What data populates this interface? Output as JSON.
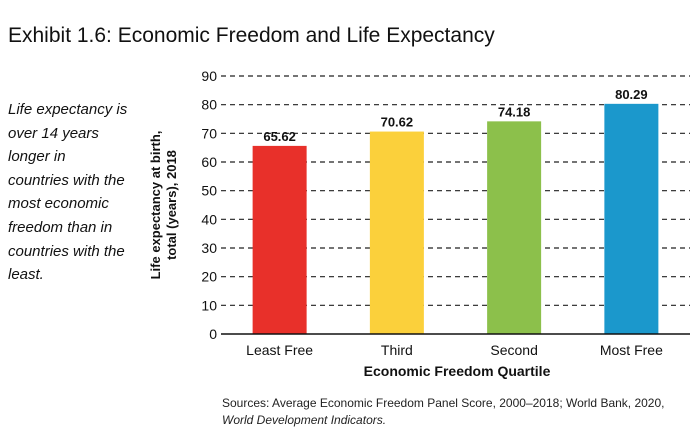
{
  "exhibit_title": "Exhibit 1.6: Economic Freedom and Life Expectancy",
  "note": "Life expectancy is over 14 years longer in countries with the most economic freedom than in countries with the least.",
  "sources": {
    "text": "Sources: Average Economic Freedom Panel Score, 2000–2018; World Bank, 2020,",
    "publication": "World Development Indicators."
  },
  "chart_data": {
    "type": "bar",
    "categories": [
      "Least Free",
      "Third",
      "Second",
      "Most Free"
    ],
    "values": [
      65.62,
      70.62,
      74.18,
      80.29
    ],
    "value_labels": [
      "65.62",
      "70.62",
      "74.18",
      "80.29"
    ],
    "colors": [
      "#e8302a",
      "#fbd03b",
      "#8cc04b",
      "#1b98cc"
    ],
    "title": "Exhibit 1.6: Economic Freedom and Life Expectancy",
    "xlabel": "Economic Freedom Quartile",
    "ylabel_lines": [
      "Life expectancy at birth,",
      "total (years), 2018"
    ],
    "ylim": [
      0,
      90
    ],
    "yticks": [
      0,
      10,
      20,
      30,
      40,
      50,
      60,
      70,
      80,
      90
    ],
    "grid": true,
    "grid_style": "dashed"
  }
}
